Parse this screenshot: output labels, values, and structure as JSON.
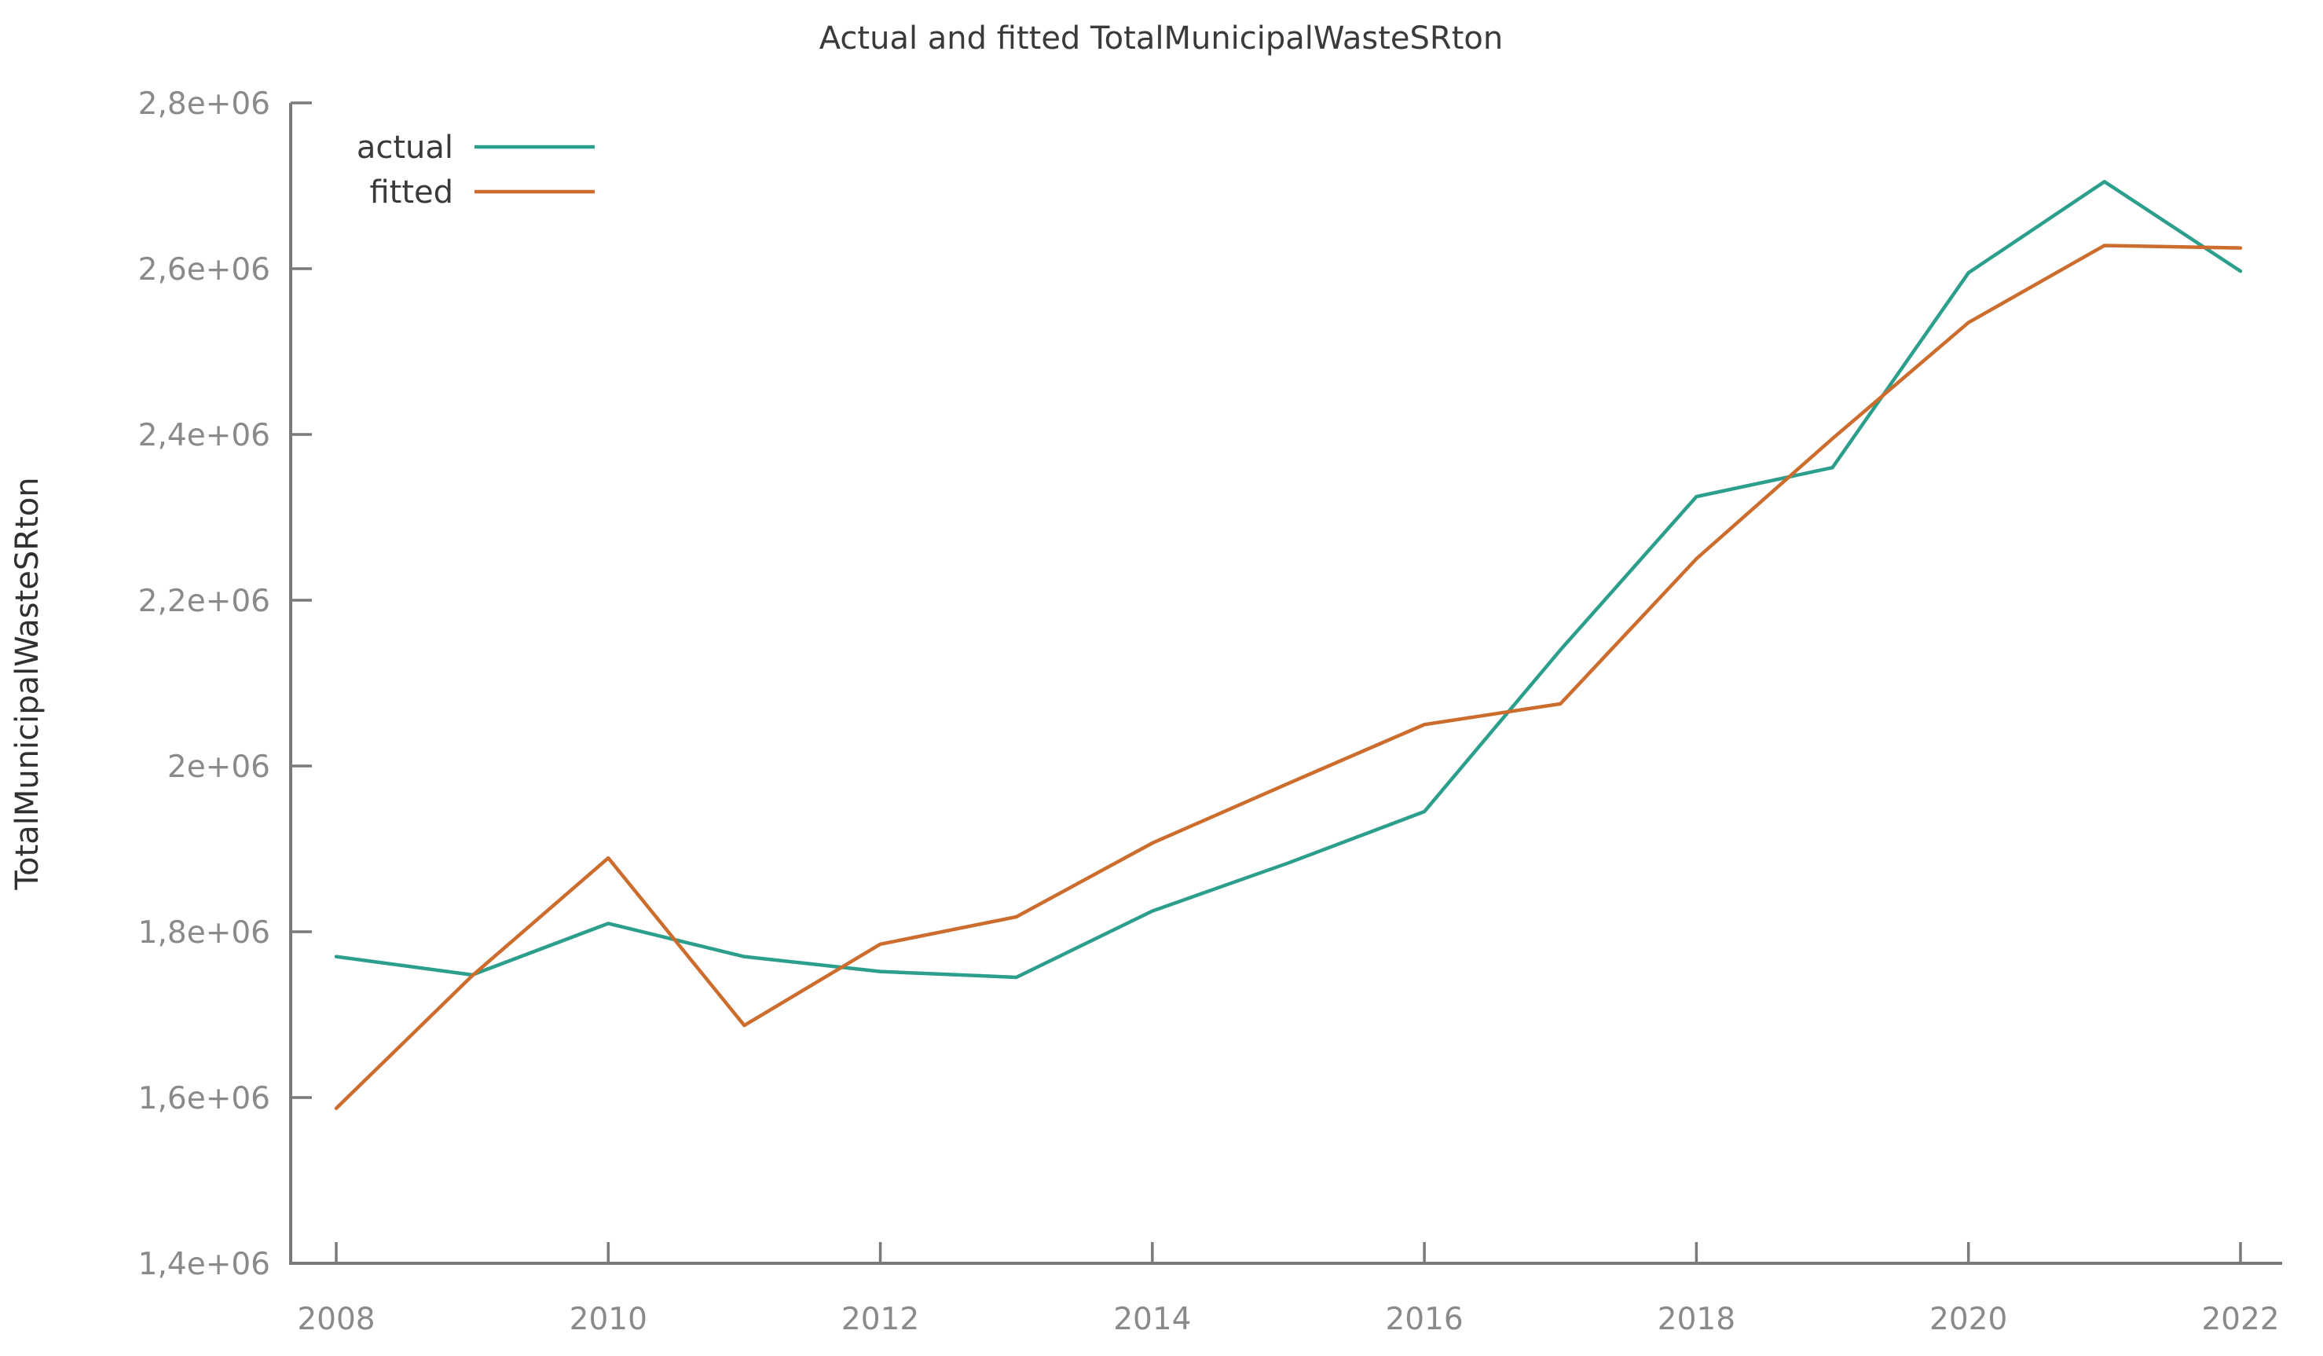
{
  "chart_data": {
    "type": "line",
    "title": "Actual and fitted TotalMunicipalWasteSRton",
    "xlabel": "",
    "ylabel": "TotalMunicipalWasteSRton",
    "ylim": [
      1400000,
      2800000
    ],
    "grid": false,
    "legend_position": "top-left-inside",
    "x": [
      2008,
      2009,
      2010,
      2011,
      2012,
      2013,
      2014,
      2015,
      2016,
      2017,
      2018,
      2019,
      2020,
      2021,
      2022
    ],
    "series": [
      {
        "name": "actual",
        "color": "#2b9e8c",
        "values": [
          1770000,
          1748000,
          1810000,
          1770000,
          1752000,
          1745000,
          1825000,
          1883000,
          1945000,
          2140000,
          2325000,
          2360000,
          2595000,
          2705000,
          2597000
        ]
      },
      {
        "name": "fitted",
        "color": "#cc6d2e",
        "values": [
          1587000,
          1747000,
          1889000,
          1687000,
          1785000,
          1818000,
          1907000,
          1979000,
          2050000,
          2075000,
          2250000,
          2395000,
          2535000,
          2628000,
          2625000
        ]
      }
    ],
    "y_ticks": [
      {
        "v": 1400000,
        "label": "1,4e+06"
      },
      {
        "v": 1600000,
        "label": "1,6e+06"
      },
      {
        "v": 1800000,
        "label": "1,8e+06"
      },
      {
        "v": 2000000,
        "label": "2e+06"
      },
      {
        "v": 2200000,
        "label": "2,2e+06"
      },
      {
        "v": 2400000,
        "label": "2,4e+06"
      },
      {
        "v": 2600000,
        "label": "2,6e+06"
      },
      {
        "v": 2800000,
        "label": "2,8e+06"
      }
    ],
    "x_ticks": [
      {
        "v": 2008,
        "label": "2008"
      },
      {
        "v": 2010,
        "label": "2010"
      },
      {
        "v": 2012,
        "label": "2012"
      },
      {
        "v": 2014,
        "label": "2014"
      },
      {
        "v": 2016,
        "label": "2016"
      },
      {
        "v": 2018,
        "label": "2018"
      },
      {
        "v": 2020,
        "label": "2020"
      },
      {
        "v": 2022,
        "label": "2022"
      }
    ],
    "axis_color": "#7a7a7a",
    "tick_label_color": "#8a8a8a",
    "text_color": "#3a3a3a"
  },
  "legend": {
    "actual_label": "actual",
    "fitted_label": "fitted"
  }
}
